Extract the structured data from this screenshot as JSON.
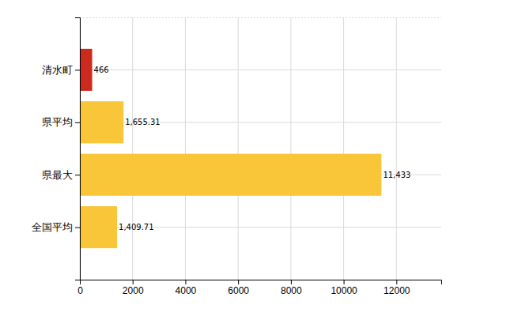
{
  "chart_data": {
    "type": "bar",
    "orientation": "horizontal",
    "categories": [
      "清水町",
      "県平均",
      "県最大",
      "全国平均"
    ],
    "values": [
      466,
      1655.31,
      11433,
      1409.71
    ],
    "value_labels": [
      "466",
      "1,655.31",
      "11,433",
      "1,409.71"
    ],
    "colors": [
      "#cc2a1e",
      "#f9c63a",
      "#f9c63a",
      "#f9c63a"
    ],
    "xlim": [
      0,
      13700
    ],
    "xticks": [
      0,
      2000,
      4000,
      6000,
      8000,
      10000,
      12000
    ],
    "grid": true,
    "data_labels": true
  }
}
